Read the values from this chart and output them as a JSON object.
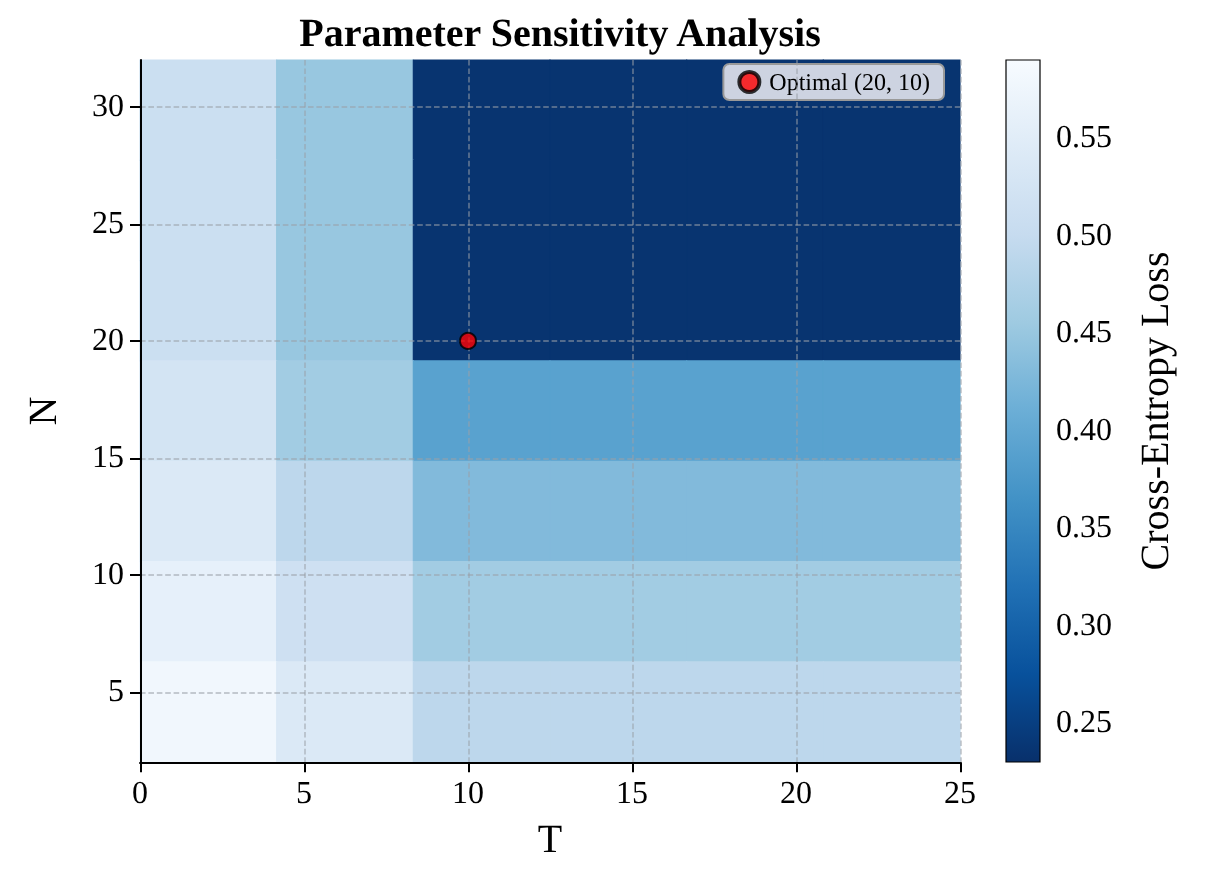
{
  "chart_data": {
    "type": "heatmap",
    "title": "Parameter Sensitivity Analysis",
    "xlabel": "T",
    "ylabel": "N",
    "clabel": "Cross-Entropy Loss",
    "x": [
      2.083,
      6.25,
      10.417,
      14.583,
      18.75,
      22.917
    ],
    "y": [
      29.857,
      25.571,
      21.286,
      17,
      12.714,
      8.429,
      4.143
    ],
    "cells": [
      [
        0.51,
        0.45,
        0.235,
        0.235,
        0.235,
        0.235
      ],
      [
        0.51,
        0.45,
        0.235,
        0.235,
        0.235,
        0.235
      ],
      [
        0.51,
        0.45,
        0.235,
        0.235,
        0.235,
        0.235
      ],
      [
        0.525,
        0.46,
        0.39,
        0.39,
        0.39,
        0.39
      ],
      [
        0.54,
        0.49,
        0.43,
        0.43,
        0.43,
        0.43
      ],
      [
        0.56,
        0.515,
        0.46,
        0.46,
        0.46,
        0.46
      ],
      [
        0.58,
        0.54,
        0.49,
        0.49,
        0.49,
        0.49
      ]
    ],
    "clim": [
      0.23,
      0.59
    ],
    "cticks": [
      0.25,
      {
        "value": 0.3,
        "label": "0.30"
      },
      0.35,
      {
        "value": 0.4,
        "label": "0.40"
      },
      0.45,
      {
        "value": 0.5,
        "label": "0.50"
      },
      0.55
    ],
    "xlim": [
      0,
      25
    ],
    "xticks": [
      0,
      5,
      10,
      15,
      20,
      25
    ],
    "ylim": [
      2,
      32
    ],
    "yticks": [
      5,
      10,
      15,
      20,
      25,
      30
    ],
    "series": [
      {
        "type": "scatter",
        "name": "Optimal (20, 10)",
        "color": "#ff0000",
        "x": [
          10
        ],
        "values": [
          20
        ]
      }
    ],
    "legend": "top right",
    "grid": true,
    "marker": "circle"
  }
}
